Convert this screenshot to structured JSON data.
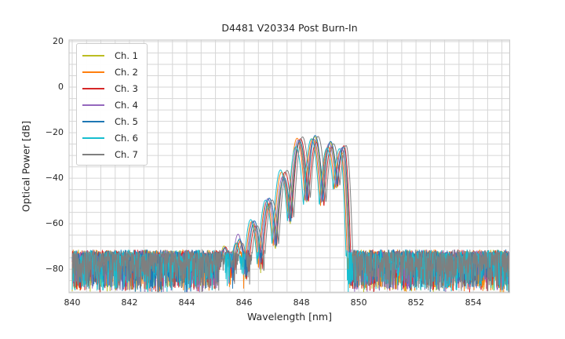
{
  "chart_data": {
    "type": "line",
    "title": "D4481 V20334 Post Burn-In",
    "xlabel": "Wavelength [nm]",
    "ylabel": "Optical Power [dB]",
    "xlim": [
      839.89,
      855.27
    ],
    "ylim": [
      -90.3,
      20.7
    ],
    "xtick_values": [
      840,
      842,
      844,
      846,
      848,
      850,
      852,
      854
    ],
    "xtick_labels": [
      "840",
      "842",
      "844",
      "846",
      "848",
      "850",
      "852",
      "854"
    ],
    "ytick_values": [
      20,
      0,
      -20,
      -40,
      -60,
      -80
    ],
    "ytick_labels": [
      "20",
      "0",
      "−20",
      "−40",
      "−60",
      "−80"
    ],
    "grid": {
      "on": true,
      "x_step_nm": 0.5,
      "y_step_db": 5,
      "color": "#d6d6d6",
      "border_color": "#cccccc"
    },
    "legend_position": "upper left",
    "series": [
      {
        "name": "Ch. 1",
        "color": "#bcbd22",
        "offset_nm": 0.0
      },
      {
        "name": "Ch. 2",
        "color": "#ff7f0e",
        "offset_nm": -0.07
      },
      {
        "name": "Ch. 3",
        "color": "#d62728",
        "offset_nm": 0.05
      },
      {
        "name": "Ch. 4",
        "color": "#9467bd",
        "offset_nm": -0.03
      },
      {
        "name": "Ch. 5",
        "color": "#1f77b4",
        "offset_nm": 0.02
      },
      {
        "name": "Ch. 6",
        "color": "#17becf",
        "offset_nm": -0.11
      },
      {
        "name": "Ch. 7",
        "color": "#7f7f7f",
        "offset_nm": 0.12
      }
    ],
    "signal_lobes": {
      "centers_nm": [
        845.3,
        845.82,
        846.34,
        846.86,
        847.38,
        847.92,
        848.46,
        849.0,
        849.44
      ],
      "peaks_db": [
        -71.5,
        -66.5,
        -59.5,
        -50.5,
        -38.5,
        -24.0,
        -22.5,
        -25.0,
        -27.0
      ],
      "lobe_coef_db_per_nm2": 380,
      "right_edge_coef_db_per_nm2": 900,
      "peak_jitter_db": 2.2
    },
    "noise": {
      "base_db": -73.5,
      "dip_span_db": 17,
      "jitter_db": 2.2
    },
    "x_data_range_nm": [
      840.0,
      855.25
    ],
    "sample_step_nm": 0.011,
    "seed": 42
  }
}
